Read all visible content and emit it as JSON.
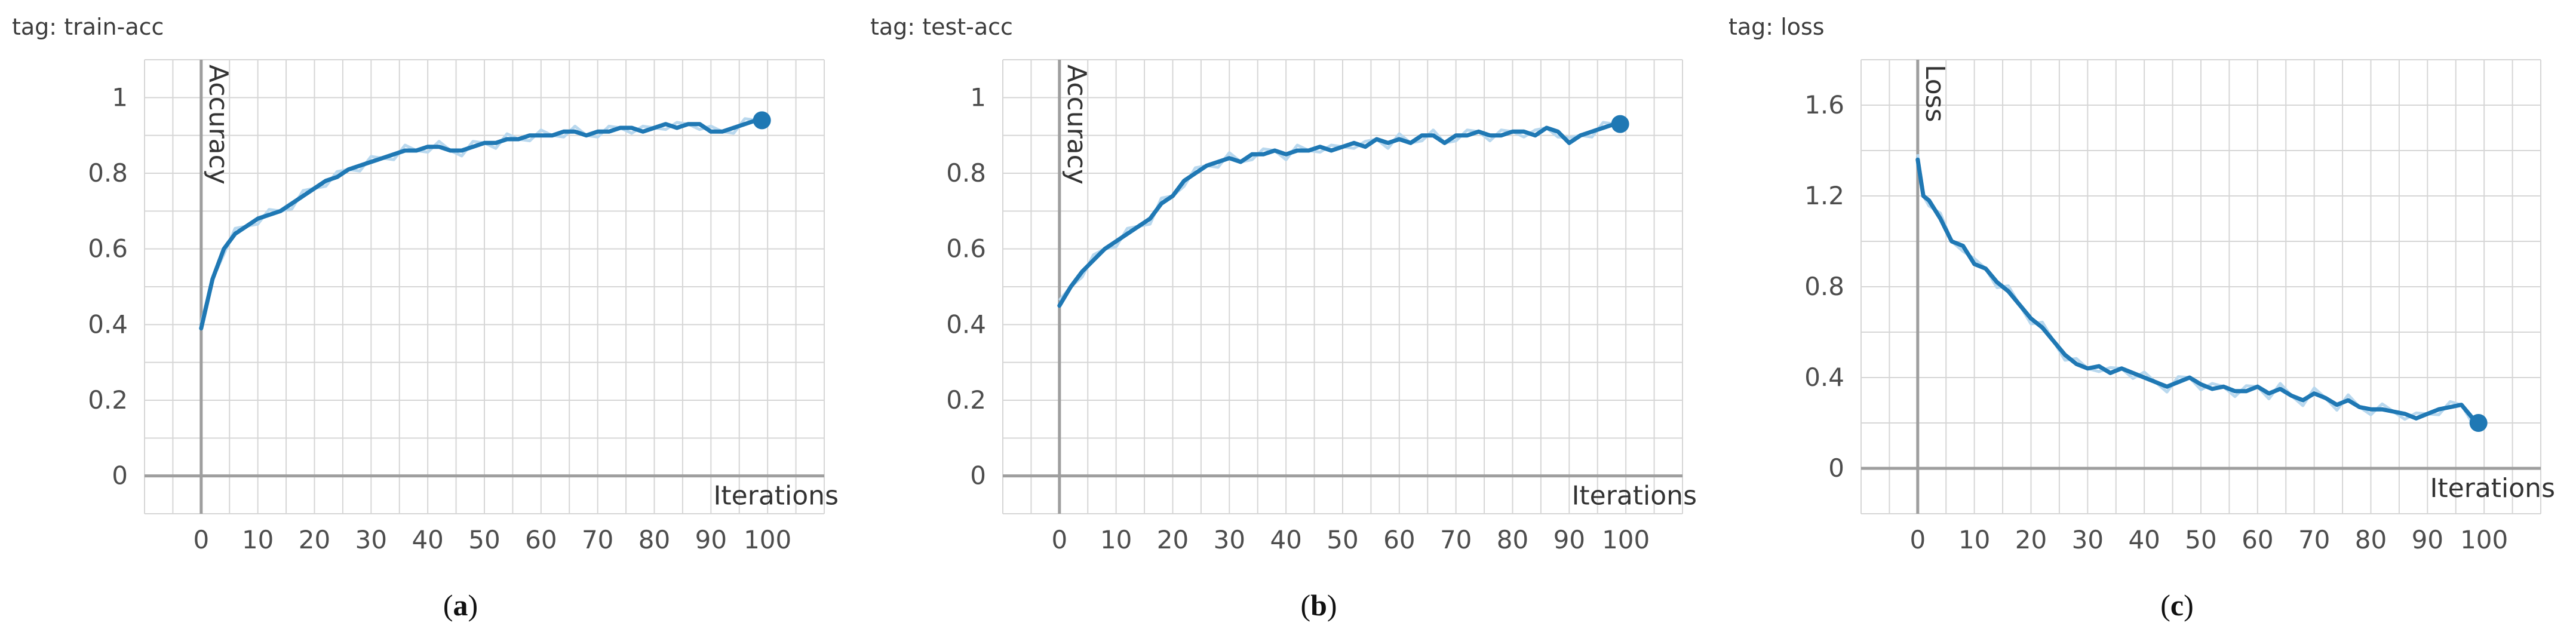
{
  "colors": {
    "line": "#1f78b4",
    "raw_line": "#b9d8ee",
    "grid": "#d6d6d6",
    "axis": "#9e9e9e"
  },
  "chart_data": [
    {
      "type": "line",
      "tag": "tag: train-acc",
      "ylabel": "Accuracy",
      "xlabel": "Iterations",
      "caption_letter": "a",
      "ylim": [
        -0.1,
        1.1
      ],
      "xlim": [
        -10,
        110
      ],
      "yticks": [
        "0",
        "0.2",
        "0.4",
        "0.6",
        "0.8",
        "1"
      ],
      "xticks": [
        "0",
        "10",
        "20",
        "30",
        "40",
        "50",
        "60",
        "70",
        "80",
        "90",
        "100"
      ],
      "grid": true,
      "legend": "none",
      "series": [
        {
          "x": [
            0,
            2,
            4,
            6,
            8,
            10,
            12,
            14,
            16,
            18,
            20,
            22,
            24,
            26,
            28,
            30,
            32,
            34,
            36,
            38,
            40,
            42,
            44,
            46,
            48,
            50,
            52,
            54,
            56,
            58,
            60,
            62,
            64,
            66,
            68,
            70,
            72,
            74,
            76,
            78,
            80,
            82,
            84,
            86,
            88,
            90,
            92,
            94,
            96,
            98,
            99
          ],
          "y": [
            0.39,
            0.52,
            0.6,
            0.64,
            0.66,
            0.68,
            0.69,
            0.7,
            0.72,
            0.74,
            0.76,
            0.78,
            0.79,
            0.81,
            0.82,
            0.83,
            0.84,
            0.85,
            0.86,
            0.86,
            0.87,
            0.87,
            0.86,
            0.86,
            0.87,
            0.88,
            0.88,
            0.89,
            0.89,
            0.9,
            0.9,
            0.9,
            0.91,
            0.91,
            0.9,
            0.91,
            0.91,
            0.92,
            0.92,
            0.91,
            0.92,
            0.93,
            0.92,
            0.93,
            0.93,
            0.91,
            0.91,
            0.92,
            0.93,
            0.94,
            0.94
          ]
        }
      ]
    },
    {
      "type": "line",
      "tag": "tag: test-acc",
      "ylabel": "Accuracy",
      "xlabel": "Iterations",
      "caption_letter": "b",
      "ylim": [
        -0.1,
        1.1
      ],
      "xlim": [
        -10,
        110
      ],
      "yticks": [
        "0",
        "0.2",
        "0.4",
        "0.6",
        "0.8",
        "1"
      ],
      "xticks": [
        "0",
        "10",
        "20",
        "30",
        "40",
        "50",
        "60",
        "70",
        "80",
        "90",
        "100"
      ],
      "grid": true,
      "legend": "none",
      "series": [
        {
          "x": [
            0,
            2,
            4,
            6,
            8,
            10,
            12,
            14,
            16,
            18,
            20,
            22,
            24,
            26,
            28,
            30,
            32,
            34,
            36,
            38,
            40,
            42,
            44,
            46,
            48,
            50,
            52,
            54,
            56,
            58,
            60,
            62,
            64,
            66,
            68,
            70,
            72,
            74,
            76,
            78,
            80,
            82,
            84,
            86,
            88,
            90,
            92,
            94,
            96,
            98,
            99
          ],
          "y": [
            0.45,
            0.5,
            0.54,
            0.57,
            0.6,
            0.62,
            0.64,
            0.66,
            0.68,
            0.72,
            0.74,
            0.78,
            0.8,
            0.82,
            0.83,
            0.84,
            0.83,
            0.85,
            0.85,
            0.86,
            0.85,
            0.86,
            0.86,
            0.87,
            0.86,
            0.87,
            0.88,
            0.87,
            0.89,
            0.88,
            0.89,
            0.88,
            0.9,
            0.9,
            0.88,
            0.9,
            0.9,
            0.91,
            0.9,
            0.9,
            0.91,
            0.91,
            0.9,
            0.92,
            0.91,
            0.88,
            0.9,
            0.91,
            0.92,
            0.93,
            0.93
          ]
        }
      ]
    },
    {
      "type": "line",
      "tag": "tag: loss",
      "ylabel": "Loss",
      "xlabel": "Iterations",
      "caption_letter": "c",
      "ylim": [
        -0.2,
        1.8
      ],
      "xlim": [
        -10,
        110
      ],
      "yticks": [
        "0",
        "0.4",
        "0.8",
        "1.2",
        "1.6"
      ],
      "xticks": [
        "0",
        "10",
        "20",
        "30",
        "40",
        "50",
        "60",
        "70",
        "80",
        "90",
        "100"
      ],
      "grid": true,
      "legend": "none",
      "series": [
        {
          "x": [
            0,
            1,
            2,
            4,
            6,
            8,
            10,
            12,
            14,
            16,
            18,
            20,
            22,
            24,
            26,
            28,
            30,
            32,
            34,
            36,
            38,
            40,
            42,
            44,
            46,
            48,
            50,
            52,
            54,
            56,
            58,
            60,
            62,
            64,
            66,
            68,
            70,
            72,
            74,
            76,
            78,
            80,
            82,
            84,
            86,
            88,
            90,
            92,
            94,
            96,
            98,
            99
          ],
          "y": [
            1.36,
            1.2,
            1.18,
            1.1,
            1.0,
            0.98,
            0.9,
            0.88,
            0.82,
            0.78,
            0.72,
            0.66,
            0.62,
            0.56,
            0.5,
            0.46,
            0.44,
            0.45,
            0.42,
            0.44,
            0.42,
            0.4,
            0.38,
            0.36,
            0.38,
            0.4,
            0.37,
            0.35,
            0.36,
            0.34,
            0.34,
            0.36,
            0.33,
            0.35,
            0.32,
            0.3,
            0.33,
            0.31,
            0.28,
            0.3,
            0.27,
            0.26,
            0.26,
            0.25,
            0.24,
            0.22,
            0.24,
            0.26,
            0.27,
            0.28,
            0.22,
            0.2
          ]
        }
      ]
    }
  ]
}
